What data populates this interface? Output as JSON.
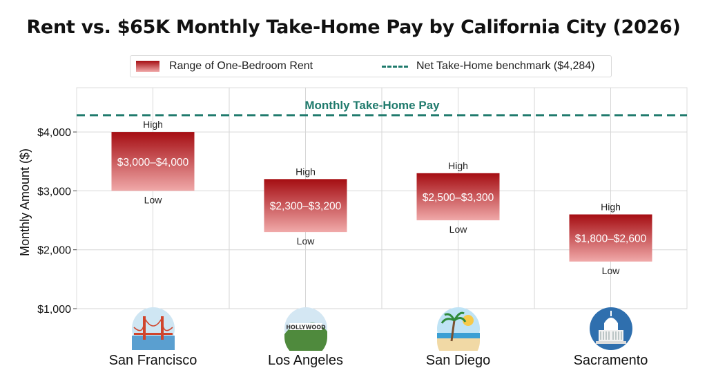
{
  "chart_data": {
    "type": "bar",
    "title": "Rent vs. $65K Monthly Take-Home Pay by California City (2026)",
    "ylabel": "Monthly Amount ($)",
    "ylim": [
      1000,
      4500
    ],
    "yticks": [
      1000,
      2000,
      3000,
      4000
    ],
    "ytick_labels": [
      "$1,000",
      "$2,000",
      "$3,000",
      "$4,000"
    ],
    "grid": true,
    "legend": {
      "placement": "top-center",
      "entries": [
        {
          "label": "Range of One-Bedroom Rent",
          "kind": "gradient-box"
        },
        {
          "label": "Net Take-Home benchmark ($4,284)",
          "kind": "dashed-line"
        }
      ]
    },
    "benchmark": {
      "value": 4284,
      "label": "Monthly Take-Home Pay",
      "color": "#1f7a6c"
    },
    "categories": [
      "San Francisco",
      "Los Angeles",
      "San Diego",
      "Sacramento"
    ],
    "icons": [
      "golden-gate-bridge-icon",
      "hollywood-sign-icon",
      "palm-beach-icon",
      "capitol-building-icon"
    ],
    "ranges": [
      {
        "low": 3000,
        "high": 4000,
        "label": "$3,000–$4,000"
      },
      {
        "low": 2300,
        "high": 3200,
        "label": "$2,300–$3,200"
      },
      {
        "low": 2500,
        "high": 3300,
        "label": "$2,500–$3,300"
      },
      {
        "low": 1800,
        "high": 2600,
        "label": "$1,800–$2,600"
      }
    ],
    "high_label": "High",
    "low_label": "Low",
    "colors": {
      "bar_top": "#a50d12",
      "bar_bottom": "#f0a9a9",
      "benchmark": "#1f7a6c",
      "grid": "#d6d6d6"
    }
  }
}
